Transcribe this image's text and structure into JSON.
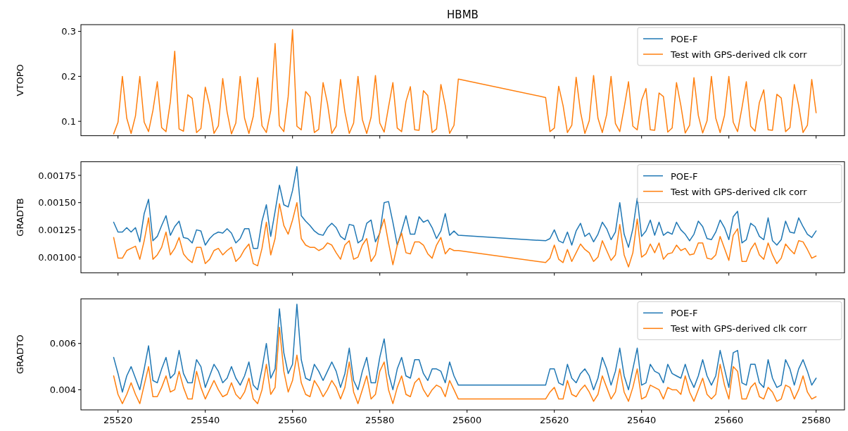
{
  "chart_data": [
    {
      "type": "line",
      "title": "HBMB",
      "ylabel": "VTOPO",
      "legend": "top right",
      "tick_labels": "y",
      "x": [
        25519,
        25520,
        25521,
        25522,
        25523,
        25524,
        25525,
        25526,
        25527,
        25528,
        25529,
        25530,
        25531,
        25532,
        25533,
        25534,
        25535,
        25536,
        25537,
        25538,
        25539,
        25540,
        25541,
        25542,
        25543,
        25544,
        25545,
        25546,
        25547,
        25548,
        25549,
        25550,
        25551,
        25552,
        25553,
        25554,
        25555,
        25556,
        25557,
        25558,
        25559,
        25560,
        25561,
        25562,
        25563,
        25564,
        25565,
        25566,
        25567,
        25568,
        25569,
        25570,
        25571,
        25572,
        25573,
        25574,
        25575,
        25576,
        25577,
        25578,
        25579,
        25580,
        25581,
        25582,
        25583,
        25584,
        25585,
        25586,
        25587,
        25588,
        25589,
        25590,
        25591,
        25592,
        25593,
        25594,
        25595,
        25596,
        25597,
        25598,
        25618,
        25619,
        25620,
        25621,
        25622,
        25623,
        25624,
        25625,
        25626,
        25627,
        25628,
        25629,
        25630,
        25631,
        25632,
        25633,
        25634,
        25635,
        25636,
        25637,
        25638,
        25639,
        25640,
        25641,
        25642,
        25643,
        25644,
        25645,
        25646,
        25647,
        25648,
        25649,
        25650,
        25651,
        25652,
        25653,
        25654,
        25655,
        25656,
        25657,
        25658,
        25659,
        25660,
        25661,
        25662,
        25663,
        25664,
        25665,
        25666,
        25667,
        25668,
        25669,
        25670,
        25671,
        25672,
        25673,
        25674,
        25675,
        25676,
        25677,
        25678,
        25679,
        25680
      ],
      "xlim": [
        25511.5,
        25686.5
      ],
      "xticks": [
        25520,
        25540,
        25560,
        25580,
        25600,
        25620,
        25640,
        25660,
        25680
      ],
      "ylim": [
        0.068,
        0.315
      ],
      "yticks": [
        0.1,
        0.2,
        0.3
      ],
      "series": [
        {
          "name": "POE-F",
          "color": "#1f77b4",
          "values": [
            null,
            null,
            null,
            null,
            null,
            null,
            null,
            null,
            null,
            null,
            null,
            null,
            null,
            null,
            null,
            null,
            null,
            null,
            null,
            null,
            null,
            null,
            null,
            null,
            null,
            null,
            null,
            null,
            null,
            null,
            null,
            null,
            null,
            null,
            null,
            null,
            null,
            null,
            null,
            null,
            null,
            null,
            null,
            null,
            null,
            null,
            null,
            null,
            null,
            null,
            null,
            null,
            null,
            null,
            null,
            null,
            null,
            null,
            null,
            null,
            null,
            null,
            null,
            null,
            null,
            null,
            null,
            null,
            null,
            null,
            null,
            null,
            null,
            null,
            null,
            null,
            null,
            null,
            null,
            null,
            null,
            null,
            null,
            null,
            null,
            null,
            null,
            null,
            null,
            null,
            null,
            null,
            null,
            null,
            null,
            null,
            null,
            null,
            null,
            null,
            null,
            null,
            null,
            null,
            null,
            null,
            null,
            null,
            null,
            null,
            null,
            null,
            null,
            null,
            null,
            null,
            null,
            null,
            null,
            null,
            null,
            null,
            null,
            null,
            null,
            null,
            null,
            null,
            null,
            null,
            null,
            null,
            null,
            null,
            null,
            null,
            null,
            null,
            null,
            null,
            null,
            null,
            null
          ]
        },
        {
          "name": "Test with GPS-derived clk corr",
          "color": "#ff7f0e",
          "values": [
            0.072,
            0.098,
            0.2,
            0.107,
            0.073,
            0.112,
            0.2,
            0.098,
            0.077,
            0.124,
            0.188,
            0.086,
            0.077,
            0.144,
            0.256,
            0.083,
            0.078,
            0.159,
            0.151,
            0.075,
            0.084,
            0.176,
            0.135,
            0.073,
            0.09,
            0.195,
            0.121,
            0.072,
            0.096,
            0.2,
            0.107,
            0.073,
            0.111,
            0.197,
            0.09,
            0.075,
            0.124,
            0.273,
            0.09,
            0.077,
            0.155,
            0.304,
            0.089,
            0.081,
            0.166,
            0.155,
            0.075,
            0.082,
            0.186,
            0.14,
            0.073,
            0.089,
            0.193,
            0.121,
            0.073,
            0.096,
            0.2,
            0.104,
            0.073,
            0.109,
            0.202,
            0.096,
            0.076,
            0.132,
            0.186,
            0.085,
            0.077,
            0.144,
            0.177,
            0.081,
            0.08,
            0.168,
            0.157,
            0.075,
            0.083,
            0.182,
            0.135,
            0.073,
            0.091,
            0.194,
            0.153,
            0.077,
            0.085,
            0.178,
            0.135,
            0.075,
            0.091,
            0.198,
            0.121,
            0.073,
            0.101,
            0.202,
            0.107,
            0.075,
            0.115,
            0.2,
            0.095,
            0.077,
            0.13,
            0.188,
            0.089,
            0.081,
            0.147,
            0.173,
            0.081,
            0.08,
            0.163,
            0.155,
            0.076,
            0.085,
            0.186,
            0.135,
            0.074,
            0.091,
            0.197,
            0.113,
            0.074,
            0.101,
            0.2,
            0.107,
            0.075,
            0.113,
            0.2,
            0.098,
            0.077,
            0.13,
            0.188,
            0.089,
            0.078,
            0.142,
            0.17,
            0.081,
            0.08,
            0.16,
            0.152,
            0.077,
            0.086,
            0.182,
            0.135,
            0.075,
            0.091,
            0.193,
            0.119
          ]
        }
      ]
    },
    {
      "type": "line",
      "ylabel": "GRADTB",
      "legend": "top right",
      "tick_labels": "y",
      "x": [
        25519,
        25520,
        25521,
        25522,
        25523,
        25524,
        25525,
        25526,
        25527,
        25528,
        25529,
        25530,
        25531,
        25532,
        25533,
        25534,
        25535,
        25536,
        25537,
        25538,
        25539,
        25540,
        25541,
        25542,
        25543,
        25544,
        25545,
        25546,
        25547,
        25548,
        25549,
        25550,
        25551,
        25552,
        25553,
        25554,
        25555,
        25556,
        25557,
        25558,
        25559,
        25560,
        25561,
        25562,
        25563,
        25564,
        25565,
        25566,
        25567,
        25568,
        25569,
        25570,
        25571,
        25572,
        25573,
        25574,
        25575,
        25576,
        25577,
        25578,
        25579,
        25580,
        25581,
        25582,
        25583,
        25584,
        25585,
        25586,
        25587,
        25588,
        25589,
        25590,
        25591,
        25592,
        25593,
        25594,
        25595,
        25596,
        25597,
        25598,
        25618,
        25619,
        25620,
        25621,
        25622,
        25623,
        25624,
        25625,
        25626,
        25627,
        25628,
        25629,
        25630,
        25631,
        25632,
        25633,
        25634,
        25635,
        25636,
        25637,
        25638,
        25639,
        25640,
        25641,
        25642,
        25643,
        25644,
        25645,
        25646,
        25647,
        25648,
        25649,
        25650,
        25651,
        25652,
        25653,
        25654,
        25655,
        25656,
        25657,
        25658,
        25659,
        25660,
        25661,
        25662,
        25663,
        25664,
        25665,
        25666,
        25667,
        25668,
        25669,
        25670,
        25671,
        25672,
        25673,
        25674,
        25675,
        25676,
        25677,
        25678,
        25679,
        25680
      ],
      "xlim": [
        25511.5,
        25686.5
      ],
      "xticks": [
        25520,
        25540,
        25560,
        25580,
        25600,
        25620,
        25640,
        25660,
        25680
      ],
      "ylim": [
        0.000856,
        0.001875
      ],
      "yticks": [
        {
          "value": 0.001,
          "label": "0.00100"
        },
        {
          "value": 0.00125,
          "label": "0.00125"
        },
        {
          "value": 0.0015,
          "label": "0.00150"
        },
        {
          "value": 0.00175,
          "label": "0.00175"
        }
      ],
      "series": [
        {
          "name": "POE-F",
          "color": "#1f77b4",
          "values": [
            0.00132,
            0.00123,
            0.00123,
            0.00127,
            0.00123,
            0.00127,
            0.00114,
            0.0014,
            0.00153,
            0.00115,
            0.00119,
            0.00129,
            0.00138,
            0.0012,
            0.00128,
            0.00133,
            0.00118,
            0.00117,
            0.00113,
            0.00125,
            0.00124,
            0.00111,
            0.00117,
            0.00121,
            0.00123,
            0.00122,
            0.00126,
            0.00122,
            0.00113,
            0.00117,
            0.00126,
            0.00126,
            0.00108,
            0.00108,
            0.00133,
            0.00148,
            0.00119,
            0.00142,
            0.00166,
            0.00148,
            0.00146,
            0.00161,
            0.00183,
            0.00138,
            0.00133,
            0.00129,
            0.00124,
            0.00121,
            0.0012,
            0.00127,
            0.00131,
            0.00127,
            0.00119,
            0.00116,
            0.0013,
            0.00129,
            0.00113,
            0.00116,
            0.00131,
            0.00134,
            0.00114,
            0.00122,
            0.0015,
            0.00151,
            0.00132,
            0.00111,
            0.00124,
            0.00138,
            0.00121,
            0.00121,
            0.00137,
            0.00132,
            0.00134,
            0.00127,
            0.00117,
            0.00124,
            0.0014,
            0.0012,
            0.00124,
            0.0012,
            0.00115,
            0.00117,
            0.00125,
            0.00115,
            0.00113,
            0.00123,
            0.00111,
            0.00124,
            0.00131,
            0.00119,
            0.00122,
            0.00114,
            0.00121,
            0.00132,
            0.00126,
            0.00116,
            0.00123,
            0.0015,
            0.00121,
            0.00109,
            0.00126,
            0.00154,
            0.00119,
            0.00124,
            0.00134,
            0.0012,
            0.00132,
            0.0012,
            0.00123,
            0.00121,
            0.00132,
            0.00125,
            0.00121,
            0.00115,
            0.00121,
            0.00133,
            0.00128,
            0.00117,
            0.00116,
            0.00123,
            0.00134,
            0.00127,
            0.00116,
            0.00137,
            0.00142,
            0.00113,
            0.00116,
            0.00131,
            0.00128,
            0.00119,
            0.00116,
            0.00136,
            0.00115,
            0.00111,
            0.00116,
            0.00133,
            0.00123,
            0.00122,
            0.00136,
            0.00128,
            0.00121,
            0.00118,
            0.00124
          ]
        },
        {
          "name": "Test with GPS-derived clk corr",
          "color": "#ff7f0e",
          "values": [
            0.00118,
            0.00099,
            0.00099,
            0.00106,
            0.00108,
            0.0011,
            0.00098,
            0.00115,
            0.00136,
            0.00098,
            0.00102,
            0.00109,
            0.00123,
            0.00102,
            0.00108,
            0.00118,
            0.00103,
            0.00098,
            0.00095,
            0.00109,
            0.00109,
            0.00094,
            0.00098,
            0.00106,
            0.00108,
            0.00102,
            0.00106,
            0.00109,
            0.00096,
            0.001,
            0.00107,
            0.00112,
            0.00094,
            0.00092,
            0.00108,
            0.00132,
            0.00102,
            0.00117,
            0.00149,
            0.00129,
            0.00121,
            0.00134,
            0.0015,
            0.00117,
            0.00111,
            0.00109,
            0.00109,
            0.00106,
            0.00108,
            0.00113,
            0.00111,
            0.00104,
            0.00098,
            0.00111,
            0.00115,
            0.00098,
            0.001,
            0.00111,
            0.00117,
            0.00096,
            0.00102,
            0.00123,
            0.00135,
            0.00113,
            0.00093,
            0.00111,
            0.00122,
            0.00104,
            0.00103,
            0.00114,
            0.00114,
            0.00111,
            0.00103,
            0.00099,
            0.00111,
            0.00118,
            0.00103,
            0.00108,
            0.00106,
            0.00106,
            0.00095,
            0.00099,
            0.00111,
            0.00098,
            0.00095,
            0.00107,
            0.00096,
            0.00104,
            0.00112,
            0.00107,
            0.00104,
            0.00096,
            0.001,
            0.00115,
            0.00106,
            0.00097,
            0.00102,
            0.0013,
            0.00102,
            0.00091,
            0.00104,
            0.00135,
            0.001,
            0.00103,
            0.00112,
            0.00104,
            0.00113,
            0.00098,
            0.00103,
            0.00104,
            0.00111,
            0.00106,
            0.00108,
            0.00102,
            0.00103,
            0.00113,
            0.00113,
            0.00099,
            0.00098,
            0.00102,
            0.00119,
            0.00108,
            0.00097,
            0.0012,
            0.00126,
            0.00096,
            0.00096,
            0.00107,
            0.00113,
            0.00102,
            0.00098,
            0.00113,
            0.00102,
            0.00094,
            0.00099,
            0.00112,
            0.00107,
            0.00103,
            0.00115,
            0.00114,
            0.00107,
            0.00099,
            0.00101
          ]
        }
      ]
    },
    {
      "type": "line",
      "ylabel": "GRADTO",
      "legend": "top right",
      "x": [
        25519,
        25520,
        25521,
        25522,
        25523,
        25524,
        25525,
        25526,
        25527,
        25528,
        25529,
        25530,
        25531,
        25532,
        25533,
        25534,
        25535,
        25536,
        25537,
        25538,
        25539,
        25540,
        25541,
        25542,
        25543,
        25544,
        25545,
        25546,
        25547,
        25548,
        25549,
        25550,
        25551,
        25552,
        25553,
        25554,
        25555,
        25556,
        25557,
        25558,
        25559,
        25560,
        25561,
        25562,
        25563,
        25564,
        25565,
        25566,
        25567,
        25568,
        25569,
        25570,
        25571,
        25572,
        25573,
        25574,
        25575,
        25576,
        25577,
        25578,
        25579,
        25580,
        25581,
        25582,
        25583,
        25584,
        25585,
        25586,
        25587,
        25588,
        25589,
        25590,
        25591,
        25592,
        25593,
        25594,
        25595,
        25596,
        25597,
        25598,
        25618,
        25619,
        25620,
        25621,
        25622,
        25623,
        25624,
        25625,
        25626,
        25627,
        25628,
        25629,
        25630,
        25631,
        25632,
        25633,
        25634,
        25635,
        25636,
        25637,
        25638,
        25639,
        25640,
        25641,
        25642,
        25643,
        25644,
        25645,
        25646,
        25647,
        25648,
        25649,
        25650,
        25651,
        25652,
        25653,
        25654,
        25655,
        25656,
        25657,
        25658,
        25659,
        25660,
        25661,
        25662,
        25663,
        25664,
        25665,
        25666,
        25667,
        25668,
        25669,
        25670,
        25671,
        25672,
        25673,
        25674,
        25675,
        25676,
        25677,
        25678,
        25679,
        25680
      ],
      "xlim": [
        25511.5,
        25686.5
      ],
      "xticks": [
        25520,
        25540,
        25560,
        25580,
        25600,
        25620,
        25640,
        25660,
        25680
      ],
      "ylim": [
        0.00313,
        0.00793
      ],
      "yticks": [
        0.004,
        0.006
      ],
      "series": [
        {
          "name": "POE-F",
          "color": "#1f77b4",
          "values": [
            0.0054,
            0.0047,
            0.0039,
            0.0046,
            0.005,
            0.0045,
            0.004,
            0.0049,
            0.0059,
            0.0044,
            0.0043,
            0.0049,
            0.0054,
            0.0045,
            0.0047,
            0.0057,
            0.0047,
            0.0043,
            0.0043,
            0.0053,
            0.005,
            0.0041,
            0.0046,
            0.0051,
            0.0048,
            0.0043,
            0.0045,
            0.005,
            0.0045,
            0.0042,
            0.0046,
            0.0052,
            0.0042,
            0.004,
            0.0049,
            0.006,
            0.0045,
            0.0049,
            0.0075,
            0.0056,
            0.0047,
            0.0051,
            0.0077,
            0.0053,
            0.0045,
            0.0044,
            0.0051,
            0.0048,
            0.0044,
            0.0048,
            0.0052,
            0.0048,
            0.0041,
            0.0047,
            0.0058,
            0.0044,
            0.004,
            0.0048,
            0.0054,
            0.0043,
            0.0043,
            0.0054,
            0.0062,
            0.0047,
            0.004,
            0.0049,
            0.0054,
            0.0046,
            0.0045,
            0.0053,
            0.0053,
            0.0047,
            0.0044,
            0.0049,
            0.0049,
            0.0048,
            0.0043,
            0.0052,
            0.0046,
            0.0042,
            0.0042,
            0.0049,
            0.0049,
            0.0043,
            0.0042,
            0.0051,
            0.0045,
            0.0043,
            0.0047,
            0.0049,
            0.0046,
            0.004,
            0.0045,
            0.0054,
            0.0049,
            0.0042,
            0.0048,
            0.0058,
            0.0046,
            0.004,
            0.0049,
            0.0058,
            0.0042,
            0.0043,
            0.0051,
            0.0048,
            0.0047,
            0.0043,
            0.0051,
            0.0047,
            0.0046,
            0.0045,
            0.0051,
            0.0045,
            0.0041,
            0.0046,
            0.0053,
            0.0046,
            0.0042,
            0.0046,
            0.0057,
            0.0049,
            0.0041,
            0.0056,
            0.0057,
            0.0043,
            0.0042,
            0.0051,
            0.0051,
            0.0043,
            0.0041,
            0.0053,
            0.0045,
            0.0041,
            0.0042,
            0.0053,
            0.0049,
            0.0042,
            0.0049,
            0.0053,
            0.0048,
            0.0042,
            0.0045
          ]
        },
        {
          "name": "Test with GPS-derived clk corr",
          "color": "#ff7f0e",
          "values": [
            0.0046,
            0.0038,
            0.0034,
            0.0038,
            0.0043,
            0.0038,
            0.0034,
            0.0042,
            0.005,
            0.0037,
            0.0037,
            0.0041,
            0.0046,
            0.0039,
            0.004,
            0.0048,
            0.0041,
            0.0036,
            0.0036,
            0.0048,
            0.0041,
            0.0036,
            0.004,
            0.0044,
            0.004,
            0.0037,
            0.0038,
            0.0043,
            0.0038,
            0.0036,
            0.0039,
            0.0045,
            0.0036,
            0.0034,
            0.004,
            0.0051,
            0.0038,
            0.0041,
            0.0067,
            0.0048,
            0.0039,
            0.0044,
            0.0055,
            0.0043,
            0.0038,
            0.0037,
            0.0044,
            0.0041,
            0.0037,
            0.004,
            0.0044,
            0.0041,
            0.0036,
            0.0041,
            0.0052,
            0.0039,
            0.0034,
            0.004,
            0.0046,
            0.0036,
            0.0038,
            0.0048,
            0.0052,
            0.004,
            0.0034,
            0.0041,
            0.0046,
            0.0038,
            0.0037,
            0.0043,
            0.0045,
            0.004,
            0.0037,
            0.004,
            0.0042,
            0.0041,
            0.0037,
            0.0044,
            0.004,
            0.0036,
            0.0036,
            0.0039,
            0.0041,
            0.0036,
            0.0036,
            0.0044,
            0.0038,
            0.0037,
            0.004,
            0.0042,
            0.0039,
            0.0035,
            0.0038,
            0.0046,
            0.0041,
            0.0036,
            0.0039,
            0.0049,
            0.0039,
            0.0035,
            0.0041,
            0.0049,
            0.0036,
            0.0037,
            0.0042,
            0.0041,
            0.004,
            0.0036,
            0.0041,
            0.004,
            0.004,
            0.0038,
            0.0046,
            0.0039,
            0.0035,
            0.004,
            0.0045,
            0.0038,
            0.0036,
            0.0038,
            0.0051,
            0.0042,
            0.0036,
            0.005,
            0.0048,
            0.0036,
            0.0036,
            0.0041,
            0.0043,
            0.0037,
            0.0036,
            0.0041,
            0.0039,
            0.0035,
            0.0036,
            0.0042,
            0.0041,
            0.0036,
            0.004,
            0.0046,
            0.0039,
            0.0036,
            0.0037
          ]
        }
      ]
    }
  ]
}
